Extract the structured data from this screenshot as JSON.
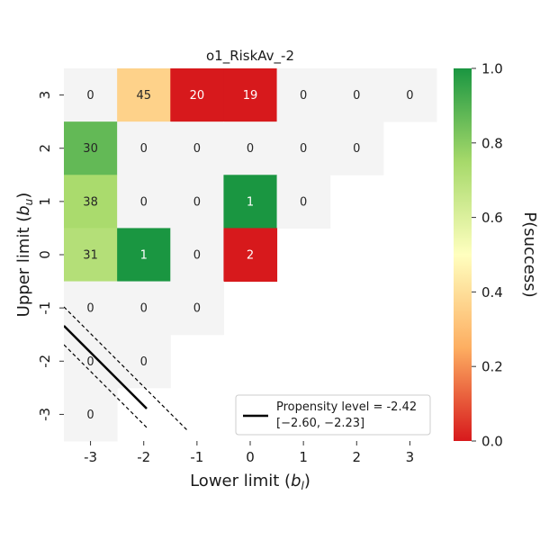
{
  "chart_data": {
    "type": "heatmap",
    "title": "o1_RiskAv_-2",
    "xlabel": "Lower limit ($b_l$)",
    "ylabel": "Upper limit ($b_u$)",
    "x_ticks": [
      -3,
      -2,
      -1,
      0,
      1,
      2,
      3
    ],
    "y_ticks": [
      3,
      2,
      1,
      0,
      -1,
      -2,
      -3
    ],
    "colorbar": {
      "label": "P(success)",
      "range": [
        0.0,
        1.0
      ],
      "ticks": [
        "0.0",
        "0.2",
        "0.4",
        "0.6",
        "0.8",
        "1.0"
      ],
      "colormap": [
        "#d7191c",
        "#fdae61",
        "#ffffbf",
        "#a6d96a",
        "#1a9641"
      ]
    },
    "cells": [
      {
        "bl": -3,
        "bu": 3,
        "count": "0",
        "p": null
      },
      {
        "bl": -2,
        "bu": 3,
        "count": "45",
        "p": 0.36
      },
      {
        "bl": -1,
        "bu": 3,
        "count": "20",
        "p": 0.0
      },
      {
        "bl": 0,
        "bu": 3,
        "count": "19",
        "p": 0.0
      },
      {
        "bl": 1,
        "bu": 3,
        "count": "0",
        "p": null
      },
      {
        "bl": 2,
        "bu": 3,
        "count": "0",
        "p": null
      },
      {
        "bl": 3,
        "bu": 3,
        "count": "0",
        "p": null
      },
      {
        "bl": -3,
        "bu": 2,
        "count": "30",
        "p": 0.87
      },
      {
        "bl": -2,
        "bu": 2,
        "count": "0",
        "p": null
      },
      {
        "bl": -1,
        "bu": 2,
        "count": "0",
        "p": null
      },
      {
        "bl": 0,
        "bu": 2,
        "count": "0",
        "p": null
      },
      {
        "bl": 1,
        "bu": 2,
        "count": "0",
        "p": null
      },
      {
        "bl": 2,
        "bu": 2,
        "count": "0",
        "p": null
      },
      {
        "bl": -3,
        "bu": 1,
        "count": "38",
        "p": 0.74
      },
      {
        "bl": -2,
        "bu": 1,
        "count": "0",
        "p": null
      },
      {
        "bl": -1,
        "bu": 1,
        "count": "0",
        "p": null
      },
      {
        "bl": 0,
        "bu": 1,
        "count": "1",
        "p": 1.0
      },
      {
        "bl": 1,
        "bu": 1,
        "count": "0",
        "p": null
      },
      {
        "bl": -3,
        "bu": 0,
        "count": "31",
        "p": 0.71
      },
      {
        "bl": -2,
        "bu": 0,
        "count": "1",
        "p": 1.0
      },
      {
        "bl": -1,
        "bu": 0,
        "count": "0",
        "p": null
      },
      {
        "bl": 0,
        "bu": 0,
        "count": "2",
        "p": 0.0
      },
      {
        "bl": -3,
        "bu": -1,
        "count": "0",
        "p": null
      },
      {
        "bl": -2,
        "bu": -1,
        "count": "0",
        "p": null
      },
      {
        "bl": -1,
        "bu": -1,
        "count": "0",
        "p": null
      },
      {
        "bl": -3,
        "bu": -2,
        "count": "0",
        "p": null
      },
      {
        "bl": -2,
        "bu": -2,
        "count": "0",
        "p": null
      },
      {
        "bl": -3,
        "bu": -3,
        "count": "0",
        "p": null
      }
    ],
    "empty_color": "#f4f4f4",
    "propensity": {
      "level": -2.42,
      "ci": [
        -2.6,
        -2.23
      ],
      "legend_line1": "Propensity level = -2.42",
      "legend_line2": "[−2.60, −2.23]",
      "legend_position": "lower-right"
    }
  }
}
